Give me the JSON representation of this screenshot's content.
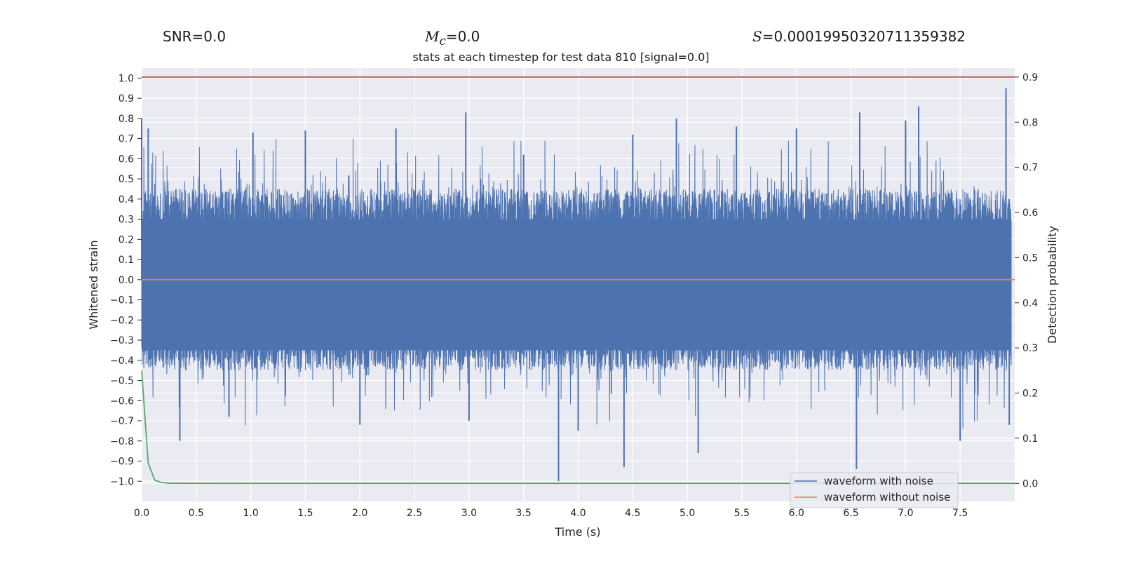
{
  "header": {
    "snr_label": "SNR=0.0",
    "mc_symbol": "M",
    "mc_subscript": "c",
    "mc_value": "=0.0",
    "s_symbol": "S",
    "s_value": "=0.00019950320711359382"
  },
  "chart_data": {
    "type": "line",
    "title": "stats at each timestep for test data 810 [signal=0.0]",
    "xlabel": "Time (s)",
    "ylabel": "Whitened strain",
    "y2label": "Detection probability",
    "xlim": [
      0.0,
      8.0
    ],
    "ylim": [
      -1.1,
      1.05
    ],
    "y2lim": [
      -0.04,
      0.92
    ],
    "x_ticks": [
      "0.0",
      "0.5",
      "1.0",
      "1.5",
      "2.0",
      "2.5",
      "3.0",
      "3.5",
      "4.0",
      "4.5",
      "5.0",
      "5.5",
      "6.0",
      "6.5",
      "7.0",
      "7.5"
    ],
    "y_ticks": [
      "1.0",
      "0.9",
      "0.8",
      "0.7",
      "0.6",
      "0.5",
      "0.4",
      "0.3",
      "0.2",
      "0.1",
      "0.0",
      "-0.1",
      "-0.2",
      "-0.3",
      "-0.4",
      "-0.5",
      "-0.6",
      "-0.7",
      "-0.8",
      "-0.9",
      "-1.0"
    ],
    "y2_ticks": [
      "0.9",
      "0.8",
      "0.7",
      "0.6",
      "0.5",
      "0.4",
      "0.3",
      "0.2",
      "0.1",
      "0.0"
    ],
    "grid": true,
    "legend_position": "bottom-right",
    "series": [
      {
        "name": "waveform with noise",
        "axis": "left",
        "color": "#4c72b0",
        "x": [
          0.0,
          0.06,
          0.35,
          0.8,
          1.02,
          1.5,
          2.0,
          2.33,
          2.97,
          3.0,
          3.3,
          3.5,
          3.82,
          4.0,
          4.42,
          4.5,
          4.9,
          5.1,
          5.45,
          6.0,
          6.55,
          6.58,
          7.0,
          7.12,
          7.5,
          7.92,
          7.95
        ],
        "y": [
          0.8,
          0.75,
          -0.8,
          -0.68,
          0.73,
          0.74,
          -0.72,
          0.75,
          0.83,
          -0.7,
          0.07,
          0.62,
          -1.0,
          -0.75,
          -0.93,
          0.72,
          0.8,
          -0.86,
          0.76,
          0.75,
          -0.94,
          0.83,
          0.79,
          0.86,
          -0.8,
          0.95,
          -0.72
        ]
      },
      {
        "name": "waveform without noise",
        "axis": "left",
        "color": "#dd8452",
        "x": [
          0.0,
          8.0
        ],
        "y": [
          0.0,
          0.0
        ]
      },
      {
        "name": "",
        "axis": "right",
        "color": "#55a868",
        "x": [
          0.0,
          0.06,
          0.12,
          0.18,
          0.25,
          0.35,
          1.0,
          8.0
        ],
        "y": [
          0.25,
          0.045,
          0.007,
          0.002,
          0.0005,
          0.0002,
          0.0,
          0.0
        ]
      },
      {
        "name": "",
        "axis": "right",
        "color": "#c44e52",
        "x": [
          0.0,
          8.0
        ],
        "y": [
          0.9,
          0.9
        ]
      }
    ]
  }
}
